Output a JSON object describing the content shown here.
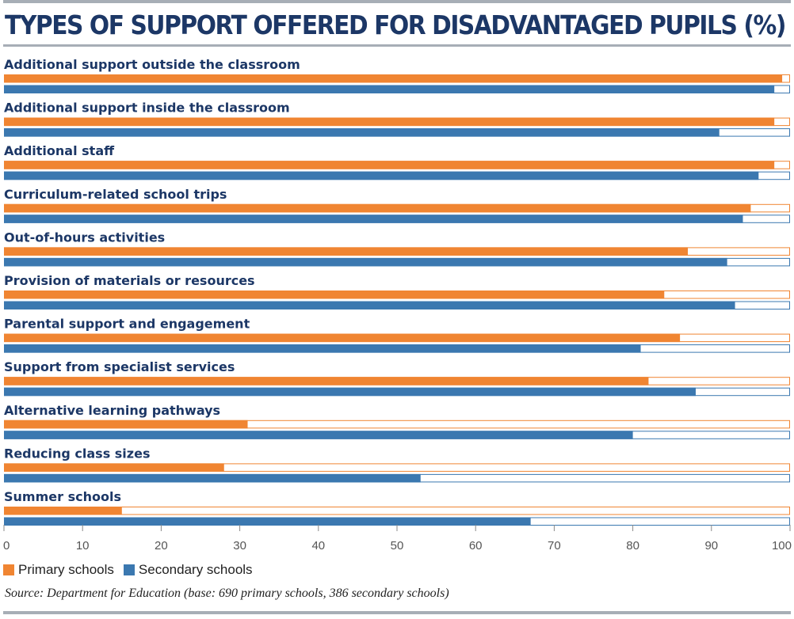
{
  "header": {
    "title": "TYPES OF SUPPORT OFFERED FOR DISADVANTAGED PUPILS (%)"
  },
  "colors": {
    "primary": "#f08532",
    "secondary": "#3b78b0",
    "title": "#1c3766",
    "rule": "#a7aeb6"
  },
  "legend": {
    "primary_label": "Primary schools",
    "secondary_label": "Secondary schools"
  },
  "source": "Source: Department for Education (base: 690 primary schools, 386 secondary schools)",
  "chart_data": {
    "type": "bar",
    "orientation": "horizontal",
    "title": "TYPES OF SUPPORT OFFERED FOR DISADVANTAGED PUPILS (%)",
    "categories": [
      "Additional support outside the classroom",
      "Additional support inside the classroom",
      "Additional staff",
      "Curriculum-related school trips",
      "Out-of-hours activities",
      "Provision of materials or resources",
      "Parental support and engagement",
      "Support from specialist services",
      "Alternative learning pathways",
      "Reducing class sizes",
      "Summer schools"
    ],
    "series": [
      {
        "name": "Primary schools",
        "values": [
          99,
          98,
          98,
          95,
          87,
          84,
          86,
          82,
          31,
          28,
          15
        ]
      },
      {
        "name": "Secondary schools",
        "values": [
          98,
          91,
          96,
          94,
          92,
          93,
          81,
          88,
          80,
          53,
          67
        ]
      }
    ],
    "xlim": [
      0,
      100
    ],
    "ticks": [
      0,
      10,
      20,
      30,
      40,
      50,
      60,
      70,
      80,
      90,
      100
    ],
    "legend_position": "bottom-left",
    "grid": false
  }
}
